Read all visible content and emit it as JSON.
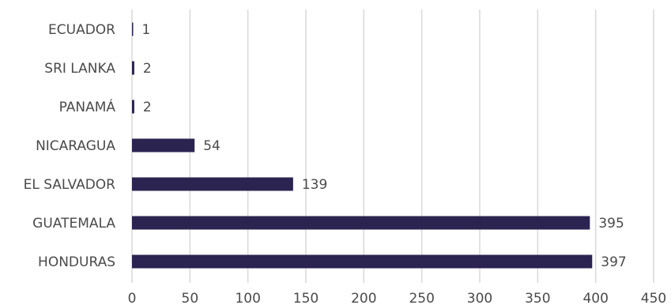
{
  "chart_data": {
    "type": "bar",
    "orientation": "horizontal",
    "categories": [
      "ECUADOR",
      "SRI LANKA",
      "PANAMÁ",
      "NICARAGUA",
      "EL SALVADOR",
      "GUATEMALA",
      "HONDURAS"
    ],
    "values": [
      1,
      2,
      2,
      54,
      139,
      395,
      397
    ],
    "value_labels": [
      "1",
      "2",
      "2",
      "54",
      "139",
      "395",
      "397"
    ],
    "xlim": [
      0,
      450
    ],
    "x_ticks": [
      0,
      50,
      100,
      150,
      200,
      250,
      300,
      350,
      400,
      450
    ],
    "x_tick_labels": [
      "0",
      "50",
      "100",
      "150",
      "200",
      "250",
      "300",
      "350",
      "400",
      "450"
    ],
    "grid": "vertical",
    "legend": "none",
    "bar_color": "#2b2350",
    "grid_color": "#d9d9d9",
    "text_color": "#4a4a4a"
  }
}
